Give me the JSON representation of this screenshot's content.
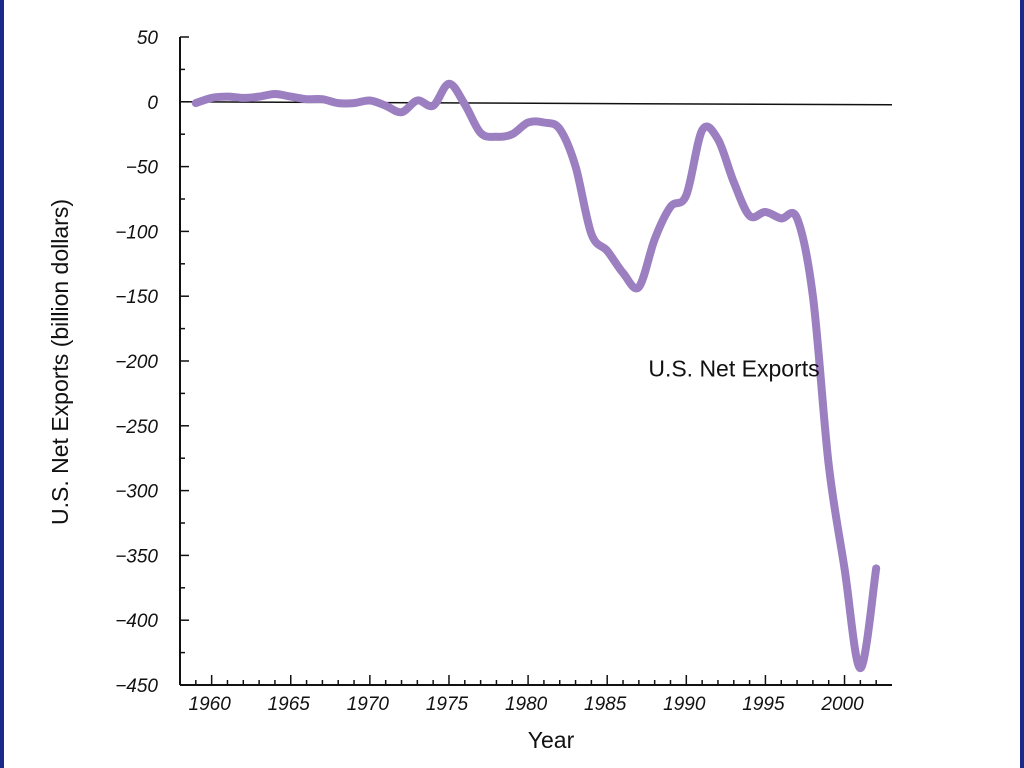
{
  "chart_data": {
    "type": "line",
    "title": "",
    "xlabel": "Year",
    "ylabel": "U.S. Net Exports (billion dollars)",
    "xlim": [
      1958,
      2003
    ],
    "ylim": [
      -450,
      50
    ],
    "x_ticks": [
      1960,
      1965,
      1970,
      1975,
      1980,
      1985,
      1990,
      1995,
      2000
    ],
    "x_tick_labels": [
      "1960",
      "1965",
      "1970",
      "1975",
      "1980",
      "1985",
      "1990",
      "1995",
      "2000"
    ],
    "y_ticks": [
      50,
      0,
      -50,
      -100,
      -150,
      -200,
      -250,
      -300,
      -350,
      -400,
      -450
    ],
    "y_tick_labels": [
      "50",
      "0",
      "−50",
      "−100",
      "−150",
      "−200",
      "−250",
      "−300",
      "−350",
      "−400",
      "−450"
    ],
    "zero_line": true,
    "grid": false,
    "series": [
      {
        "name": "U.S. Net Exports",
        "color": "#9b7fc0",
        "x": [
          1959,
          1960,
          1961,
          1962,
          1963,
          1964,
          1965,
          1966,
          1967,
          1968,
          1969,
          1970,
          1971,
          1972,
          1973,
          1974,
          1975,
          1976,
          1977,
          1978,
          1979,
          1980,
          1981,
          1982,
          1983,
          1984,
          1985,
          1986,
          1987,
          1988,
          1989,
          1990,
          1991,
          1992,
          1993,
          1994,
          1995,
          1996,
          1997,
          1998,
          1999,
          2000,
          2001,
          2002
        ],
        "values": [
          -1,
          3,
          4,
          3,
          4,
          6,
          4,
          2,
          2,
          -1,
          -1,
          1,
          -3,
          -8,
          1,
          -3,
          14,
          -2,
          -24,
          -27,
          -25,
          -16,
          -16,
          -21,
          -50,
          -102,
          -115,
          -132,
          -143,
          -106,
          -81,
          -72,
          -22,
          -29,
          -62,
          -88,
          -85,
          -90,
          -90,
          -150,
          -280,
          -360,
          -437,
          -360
        ]
      }
    ],
    "annotations": [
      {
        "text": "U.S. Net Exports",
        "x": 1987.6,
        "y": -212
      }
    ]
  }
}
